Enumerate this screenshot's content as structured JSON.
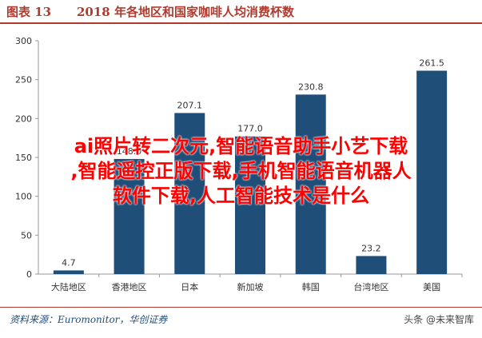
{
  "header": {
    "figure_label": "图表 13",
    "title": "2018 年各地区和国家咖啡人均消费杯数"
  },
  "chart_data": {
    "type": "bar",
    "title": "2018 年各地区和国家咖啡人均消费杯数",
    "categories": [
      "大陆地区",
      "香港地区",
      "日本",
      "新加坡",
      "韩国",
      "台湾地区",
      "美国"
    ],
    "values": [
      4.7,
      148.0,
      207.1,
      177.0,
      230.8,
      23.2,
      261.5
    ],
    "value_labels": [
      "4.7",
      "148.0",
      "207.1",
      "177.0",
      "230.8",
      "23.2",
      "261.5"
    ],
    "ylim": [
      0,
      300
    ],
    "yticks": [
      0,
      50,
      100,
      150,
      200,
      250,
      300
    ],
    "bar_color": "#1f4e79",
    "grid": false,
    "legend": "none"
  },
  "overlay": {
    "lines": [
      "ai照片转二次元,智能语音助手小艺下载",
      ",智能遥控正版下载,手机智能语音机器人",
      "软件下载,人工智能技术是什么"
    ],
    "color": "#ff0000"
  },
  "footer": {
    "source": "资料来源：Euromonitor，华创证券",
    "watermark": "头条 @未来智库"
  }
}
